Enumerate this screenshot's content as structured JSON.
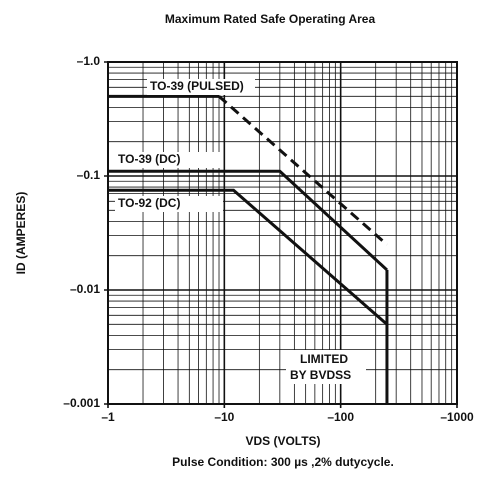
{
  "chart_data": {
    "type": "line",
    "title": "Maximum Rated Safe Operating Area",
    "xlabel": "VDS (VOLTS)",
    "ylabel": "ID (AMPERES)",
    "footnote": "Pulse Condition: 300 µs ,2% dutycycle.",
    "log_x": true,
    "log_y": true,
    "grid": true,
    "xlim": [
      -1,
      -1000
    ],
    "ylim": [
      -0.001,
      -1
    ],
    "xticks": [
      {
        "value": -1,
        "label": "–1"
      },
      {
        "value": -10,
        "label": "–10"
      },
      {
        "value": -100,
        "label": "–100"
      },
      {
        "value": -1000,
        "label": "–1000"
      }
    ],
    "yticks": [
      {
        "value": -0.001,
        "label": "–0.001"
      },
      {
        "value": -0.01,
        "label": "–0.01"
      },
      {
        "value": -0.1,
        "label": "–0.1"
      },
      {
        "value": -1,
        "label": "–1.0"
      }
    ],
    "color": "#111111",
    "series": [
      {
        "name": "TO-39 (PULSED)",
        "x": [
          -1,
          -9,
          -250
        ],
        "values": [
          -0.5,
          -0.5,
          -0.025
        ],
        "dash_from_index": 1
      },
      {
        "name": "TO-39 (DC)",
        "x": [
          -1,
          -30,
          -250
        ],
        "values": [
          -0.11,
          -0.11,
          -0.015
        ]
      },
      {
        "name": "TO-92 (DC)",
        "x": [
          -1,
          -12,
          -250
        ],
        "values": [
          -0.075,
          -0.075,
          -0.005
        ]
      },
      {
        "x": [
          -250,
          -250
        ],
        "values": [
          -0.015,
          -0.001
        ]
      }
    ],
    "annotation": [
      "LIMITED",
      "BY BVDSS"
    ]
  }
}
